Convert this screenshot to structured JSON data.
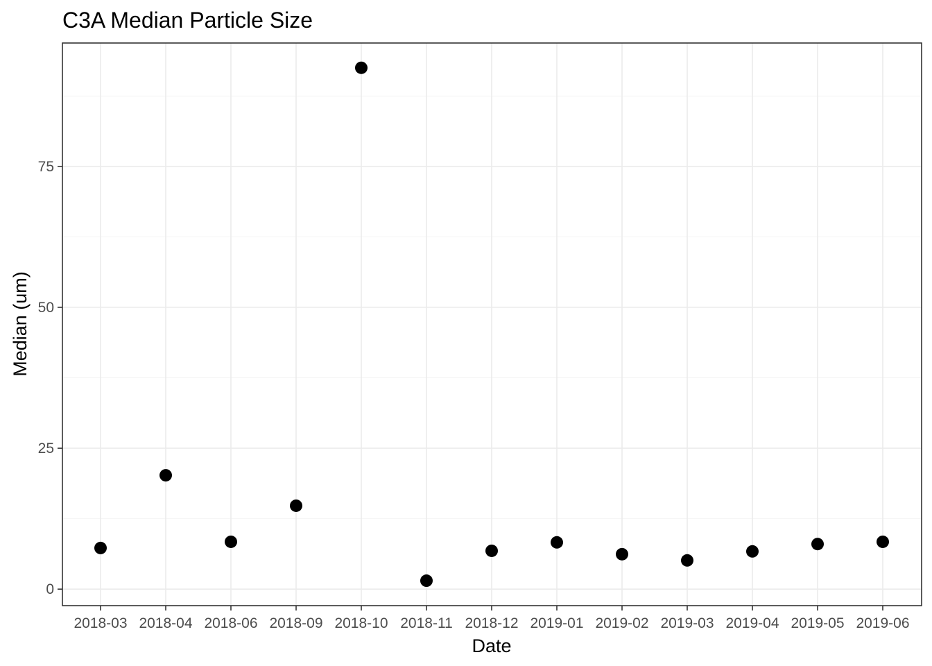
{
  "chart_data": {
    "type": "scatter",
    "title": "C3A Median Particle Size",
    "xlabel": "Date",
    "ylabel": "Median (um)",
    "x_axis_type": "category",
    "categories": [
      "2018-03",
      "2018-04",
      "2018-06",
      "2018-09",
      "2018-10",
      "2018-11",
      "2018-12",
      "2019-01",
      "2019-02",
      "2019-03",
      "2019-04",
      "2019-05",
      "2019-06"
    ],
    "values": [
      7.3,
      20.2,
      8.4,
      14.8,
      92.5,
      1.5,
      6.8,
      8.3,
      6.2,
      5.1,
      6.7,
      8.0,
      8.4
    ],
    "ylim": [
      -2.93,
      96.9
    ],
    "yticks": [
      0,
      25,
      50,
      75
    ],
    "yticks_minor": [
      12.5,
      37.5,
      62.5,
      87.5
    ],
    "grid": true,
    "legend": "none",
    "point_color": "#000000",
    "theme": "bw"
  }
}
